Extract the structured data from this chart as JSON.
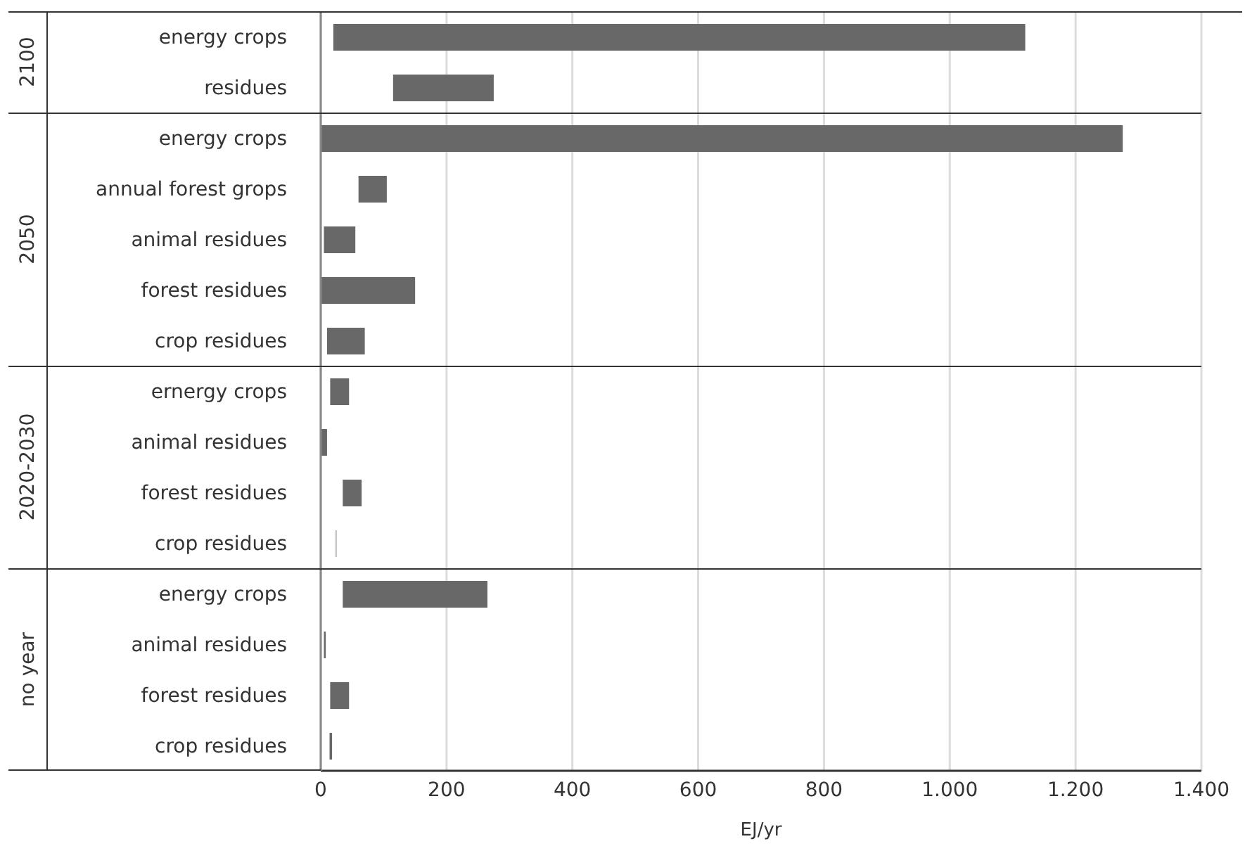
{
  "chart_data": [
    {
      "type": "bar",
      "orientation": "horizontal",
      "ylabel": "2100",
      "categories": [
        "energy crops",
        "residues"
      ],
      "base": [
        20,
        115
      ],
      "values": [
        1100,
        160
      ],
      "color": "#686868",
      "xlim": [
        0,
        1400
      ],
      "xticks": [
        0,
        200,
        400,
        600,
        800,
        1000,
        1200,
        1400
      ],
      "grid": "x",
      "tick_labels": "y"
    },
    {
      "type": "bar",
      "orientation": "horizontal",
      "ylabel": "2050",
      "categories": [
        "energy crops",
        "annual forest grops",
        "animal residues",
        "forest residues",
        "crop residues"
      ],
      "base": [
        0,
        60,
        5,
        0,
        10
      ],
      "values": [
        1275,
        45,
        50,
        150,
        60
      ],
      "color": "#686868",
      "xlim": [
        0,
        1400
      ],
      "xticks": [
        0,
        200,
        400,
        600,
        800,
        1000,
        1200,
        1400
      ],
      "grid": "x",
      "tick_labels": "y"
    },
    {
      "type": "bar",
      "orientation": "horizontal",
      "ylabel": "2020-2030",
      "categories": [
        "ernergy crops",
        "animal residues",
        "forest residues",
        "crop residues"
      ],
      "base": [
        15,
        0,
        35,
        24
      ],
      "values": [
        30,
        10,
        30,
        1
      ],
      "color": "#686868",
      "xlim": [
        0,
        1400
      ],
      "xticks": [
        0,
        200,
        400,
        600,
        800,
        1000,
        1200,
        1400
      ],
      "grid": "x",
      "tick_labels": "y"
    },
    {
      "type": "bar",
      "orientation": "horizontal",
      "ylabel": "no year",
      "xlabel": "EJ/yr",
      "categories": [
        "energy crops",
        "animal residues",
        "forest residues",
        "crop residues"
      ],
      "base": [
        35,
        5,
        15,
        14
      ],
      "values": [
        230,
        3,
        30,
        4
      ],
      "color": "#686868",
      "xlim": [
        0,
        1400
      ],
      "xticks": [
        0,
        200,
        400,
        600,
        800,
        {
          "value": 1000,
          "label": "1.000"
        },
        {
          "value": 1200,
          "label": "1.200"
        },
        {
          "value": 1400,
          "label": "1.400"
        }
      ],
      "grid": "x"
    }
  ]
}
